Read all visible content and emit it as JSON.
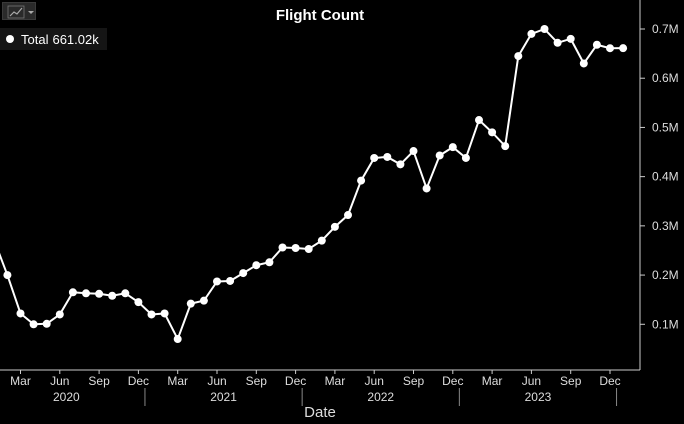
{
  "toolbar": {
    "chart_type_icon": "line-chart-icon",
    "dropdown_icon": "caret-down-icon"
  },
  "legend": {
    "label": "Total",
    "value": "661.02k"
  },
  "colors": {
    "background": "#000000",
    "line": "#ffffff",
    "grid": "#2a2a2a",
    "axis_text": "#dddddd"
  },
  "chart_data": {
    "type": "line",
    "title": "Flight Count",
    "xlabel": "Date",
    "ylabel": "",
    "ylim": [
      0,
      750000
    ],
    "y_axis_position": "right",
    "yticks": [
      100000,
      200000,
      300000,
      400000,
      500000,
      600000,
      700000
    ],
    "ytick_labels": [
      "0.1M",
      "0.2M",
      "0.3M",
      "0.4M",
      "0.5M",
      "0.6M",
      "0.7M"
    ],
    "x_ticks": [
      {
        "date": "2020-03",
        "label": "Mar"
      },
      {
        "date": "2020-06",
        "label": "Jun"
      },
      {
        "date": "2020-09",
        "label": "Sep"
      },
      {
        "date": "2020-12",
        "label": "Dec"
      },
      {
        "date": "2021-03",
        "label": "Mar"
      },
      {
        "date": "2021-06",
        "label": "Jun"
      },
      {
        "date": "2021-09",
        "label": "Sep"
      },
      {
        "date": "2021-12",
        "label": "Dec"
      },
      {
        "date": "2022-03",
        "label": "Mar"
      },
      {
        "date": "2022-06",
        "label": "Jun"
      },
      {
        "date": "2022-09",
        "label": "Sep"
      },
      {
        "date": "2022-12",
        "label": "Dec"
      },
      {
        "date": "2023-03",
        "label": "Mar"
      },
      {
        "date": "2023-06",
        "label": "Jun"
      },
      {
        "date": "2023-09",
        "label": "Sep"
      },
      {
        "date": "2023-12",
        "label": "Dec"
      }
    ],
    "year_labels": [
      "2020",
      "2021",
      "2022",
      "2023"
    ],
    "grid": false,
    "series": [
      {
        "name": "Total",
        "x": [
          "2020-01",
          "2020-02",
          "2020-03",
          "2020-04",
          "2020-05",
          "2020-06",
          "2020-07",
          "2020-08",
          "2020-09",
          "2020-10",
          "2020-11",
          "2020-12",
          "2021-01",
          "2021-02",
          "2021-03",
          "2021-04",
          "2021-05",
          "2021-06",
          "2021-07",
          "2021-08",
          "2021-09",
          "2021-10",
          "2021-11",
          "2021-12",
          "2022-01",
          "2022-02",
          "2022-03",
          "2022-04",
          "2022-05",
          "2022-06",
          "2022-07",
          "2022-08",
          "2022-09",
          "2022-10",
          "2022-11",
          "2022-12",
          "2023-01",
          "2023-02",
          "2023-03",
          "2023-04",
          "2023-05",
          "2023-06",
          "2023-07",
          "2023-08",
          "2023-09",
          "2023-10",
          "2023-11",
          "2023-12",
          "2024-01"
        ],
        "values": [
          270000,
          200000,
          122000,
          100000,
          101000,
          120000,
          165000,
          163000,
          162000,
          158000,
          163000,
          145000,
          120000,
          122000,
          70000,
          142000,
          148000,
          187000,
          188000,
          204000,
          220000,
          226000,
          256000,
          255000,
          253000,
          270000,
          298000,
          322000,
          392000,
          438000,
          440000,
          425000,
          452000,
          376000,
          443000,
          460000,
          438000,
          515000,
          490000,
          462000,
          645000,
          690000,
          700000,
          672000,
          680000,
          630000,
          668000,
          661000,
          661020
        ]
      }
    ]
  }
}
